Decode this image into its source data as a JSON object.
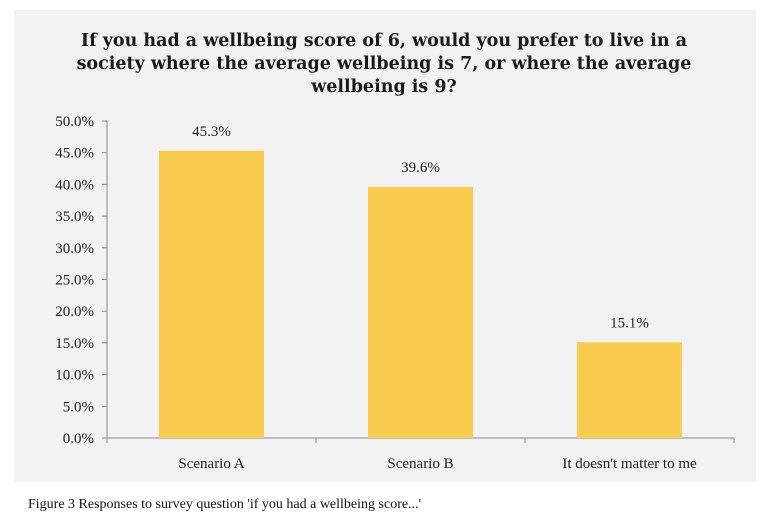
{
  "chart_data": {
    "type": "bar",
    "title": "If you had a wellbeing score of 6, would you prefer to live in a society where the average wellbeing is 7, or where the average wellbeing is 9?",
    "categories": [
      "Scenario A",
      "Scenario B",
      "It doesn't matter to me"
    ],
    "values": [
      45.3,
      39.6,
      15.1
    ],
    "data_labels": [
      "45.3%",
      "39.6%",
      "15.1%"
    ],
    "y_ticks": [
      "0.0%",
      "5.0%",
      "10.0%",
      "15.0%",
      "20.0%",
      "25.0%",
      "30.0%",
      "35.0%",
      "40.0%",
      "45.0%",
      "50.0%"
    ],
    "ylim": [
      0,
      50
    ],
    "xlabel": "",
    "ylabel": "",
    "grid": false,
    "bar_color": "#f9cb4f",
    "background_color": "#f2f2f2"
  },
  "caption": "Figure 3 Responses to survey question 'if you had a wellbeing score...'"
}
